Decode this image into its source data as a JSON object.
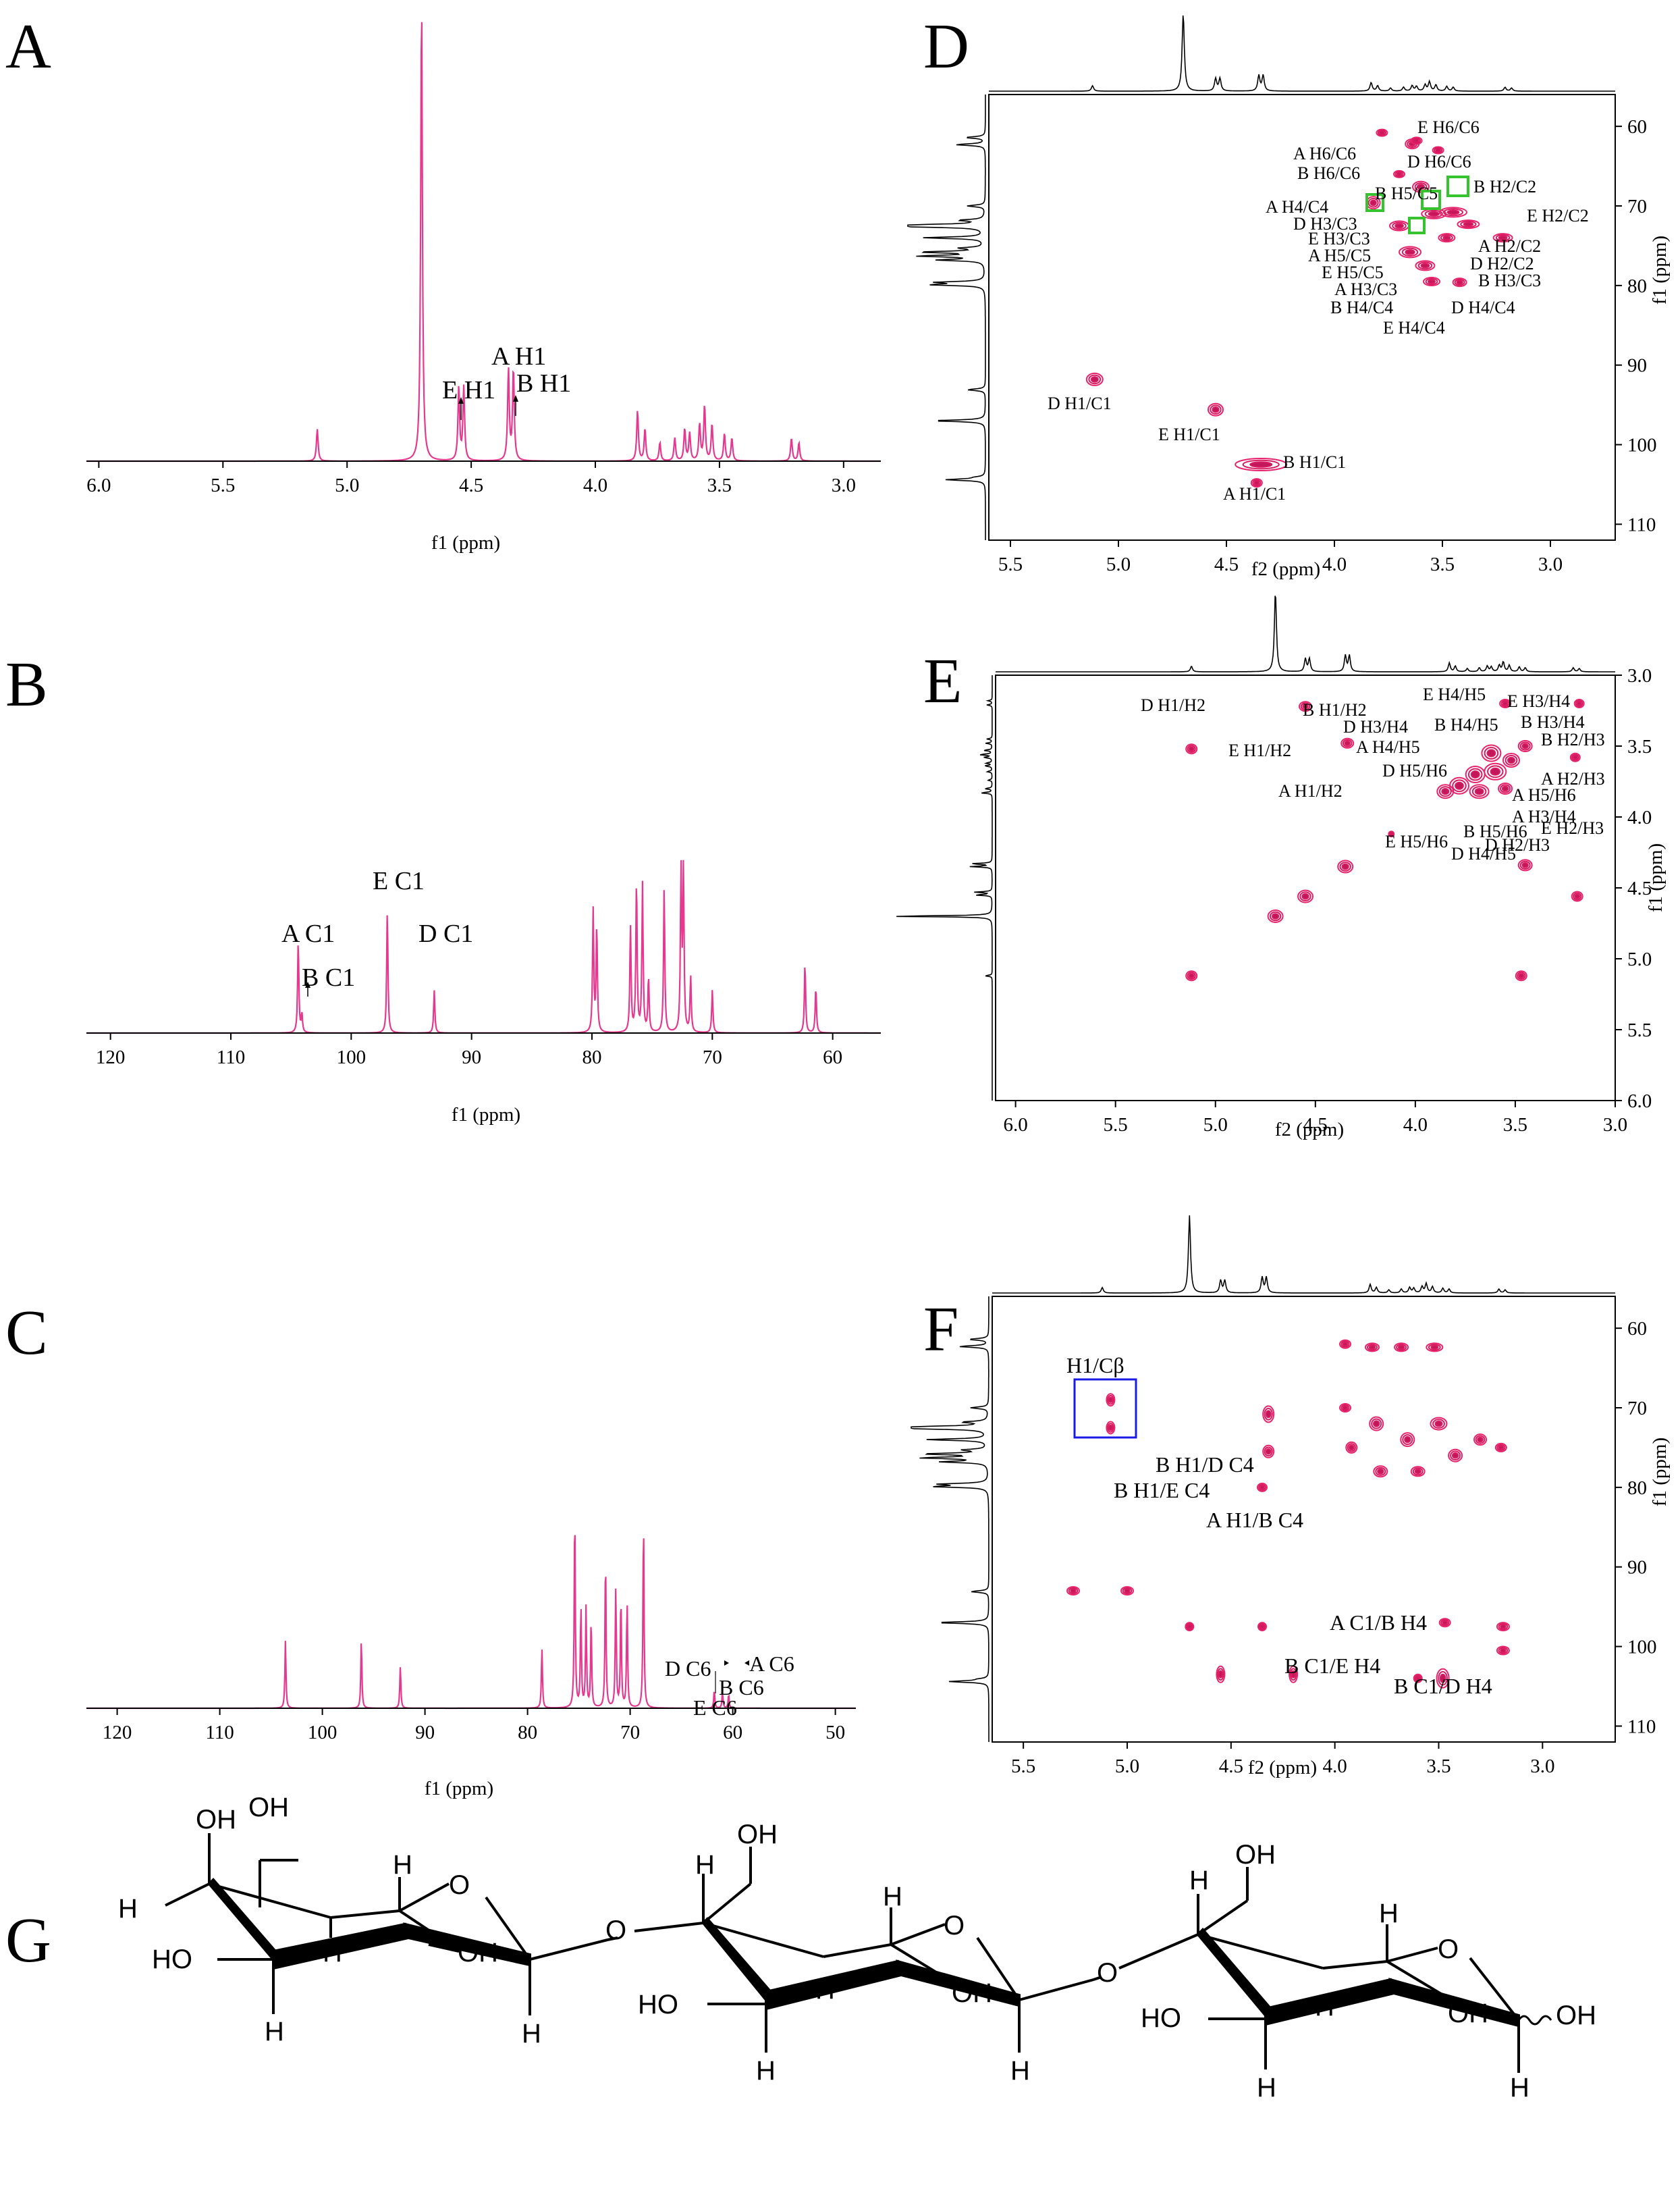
{
  "colors": {
    "spectrum": "#e5398f",
    "contour": "#e8236d",
    "contour_inner": "#c2185b",
    "frame": "#000000",
    "highlight_green": "#35c42e",
    "highlight_blue": "#1a1ae6"
  },
  "chart_data": [
    {
      "panel": "A",
      "type": "line",
      "title": "",
      "xlabel": "f1 (ppm)",
      "xlim": [
        6.05,
        2.85
      ],
      "xticks": [
        6.0,
        5.5,
        5.0,
        4.5,
        4.0,
        3.5,
        3.0
      ],
      "peaks": [
        {
          "x": 5.12,
          "h": 0.07
        },
        {
          "x": 4.7,
          "h": 1.0
        },
        {
          "x": 4.55,
          "h": 0.16
        },
        {
          "x": 4.53,
          "h": 0.16
        },
        {
          "x": 4.35,
          "h": 0.2
        },
        {
          "x": 4.33,
          "h": 0.2
        },
        {
          "x": 3.83,
          "h": 0.11
        },
        {
          "x": 3.8,
          "h": 0.07
        },
        {
          "x": 3.74,
          "h": 0.04
        },
        {
          "x": 3.68,
          "h": 0.05
        },
        {
          "x": 3.64,
          "h": 0.07
        },
        {
          "x": 3.62,
          "h": 0.06
        },
        {
          "x": 3.58,
          "h": 0.08
        },
        {
          "x": 3.56,
          "h": 0.12
        },
        {
          "x": 3.53,
          "h": 0.08
        },
        {
          "x": 3.48,
          "h": 0.06
        },
        {
          "x": 3.45,
          "h": 0.05
        },
        {
          "x": 3.21,
          "h": 0.05
        },
        {
          "x": 3.18,
          "h": 0.04
        }
      ],
      "annotations": [
        "E H1",
        "A H1",
        "B H1"
      ]
    },
    {
      "panel": "B",
      "type": "line",
      "title": "",
      "xlabel": "f1 (ppm)",
      "xlim": [
        122,
        56
      ],
      "xticks": [
        120,
        110,
        100,
        90,
        80,
        70,
        60
      ],
      "peaks": [
        {
          "x": 104.4,
          "h": 0.5
        },
        {
          "x": 104.1,
          "h": 0.1
        },
        {
          "x": 97.0,
          "h": 0.67
        },
        {
          "x": 93.1,
          "h": 0.23
        },
        {
          "x": 79.9,
          "h": 0.66
        },
        {
          "x": 79.6,
          "h": 0.58
        },
        {
          "x": 76.8,
          "h": 0.58
        },
        {
          "x": 76.3,
          "h": 0.83
        },
        {
          "x": 75.8,
          "h": 0.8
        },
        {
          "x": 75.3,
          "h": 0.3
        },
        {
          "x": 74.0,
          "h": 0.78
        },
        {
          "x": 72.6,
          "h": 0.86
        },
        {
          "x": 72.4,
          "h": 0.86
        },
        {
          "x": 71.8,
          "h": 0.3
        },
        {
          "x": 70.0,
          "h": 0.23
        },
        {
          "x": 62.3,
          "h": 0.38
        },
        {
          "x": 61.4,
          "h": 0.25
        }
      ],
      "annotations": [
        "E C1",
        "A C1",
        "B C1",
        "D C1"
      ]
    },
    {
      "panel": "C",
      "type": "line",
      "title": "",
      "xlabel": "f1 (ppm)",
      "xlim": [
        123,
        48
      ],
      "xticks": [
        120,
        110,
        100,
        90,
        80,
        70,
        60,
        50
      ],
      "peaks": [
        {
          "x": 103.6,
          "h": 0.34
        },
        {
          "x": 96.2,
          "h": 0.34
        },
        {
          "x": 92.4,
          "h": 0.21
        },
        {
          "x": 78.6,
          "h": 0.3
        },
        {
          "x": 75.4,
          "h": 1.0
        },
        {
          "x": 74.8,
          "h": 0.5
        },
        {
          "x": 74.3,
          "h": 0.5
        },
        {
          "x": 73.8,
          "h": 0.44
        },
        {
          "x": 72.4,
          "h": 0.76
        },
        {
          "x": 71.4,
          "h": 0.6
        },
        {
          "x": 70.9,
          "h": 0.56
        },
        {
          "x": 70.3,
          "h": 0.53
        },
        {
          "x": 68.7,
          "h": 0.95
        },
        {
          "x": 61.8,
          "h": 0.09
        },
        {
          "x": 61.0,
          "h": 0.08
        },
        {
          "x": 60.4,
          "h": 0.07
        }
      ],
      "annotations": [
        "D C6",
        "A C6",
        "B C6",
        "E C6"
      ]
    },
    {
      "panel": "D",
      "type": "heatmap",
      "xlabel": "f2 (ppm)",
      "ylabel": "f1 (ppm)",
      "xlim": [
        5.6,
        2.7
      ],
      "ylim": [
        56,
        112
      ],
      "xticks": [
        5.5,
        5.0,
        4.5,
        4.0,
        3.5,
        3.0
      ],
      "yticks": [
        60,
        70,
        80,
        90,
        100,
        110
      ],
      "annotations": [
        "E H6/C6",
        "A H6/C6",
        "D H6/C6",
        "B H6/C6",
        "B H5/C5",
        "B H2/C2",
        "A H4/C4",
        "D H3/C3",
        "E H2/C2",
        "E H3/C3",
        "A H2/C2",
        "A H5/C5",
        "D H2/C2",
        "E H5/C5",
        "B H3/C3",
        "A H3/C3",
        "B H4/C4",
        "D H4/C4",
        "E H4/C4",
        "D H1/C1",
        "E H1/C1",
        "B H1/C1",
        "A H1/C1"
      ]
    },
    {
      "panel": "E",
      "type": "heatmap",
      "xlabel": "f2 (ppm)",
      "ylabel": "f1 (ppm)",
      "xlim": [
        6.1,
        3.0
      ],
      "ylim": [
        3.0,
        6.0
      ],
      "xticks": [
        6.0,
        5.5,
        5.0,
        4.5,
        4.0,
        3.5,
        3.0
      ],
      "yticks": [
        3.0,
        3.5,
        4.0,
        4.5,
        5.0,
        5.5,
        6.0
      ],
      "annotations": [
        "D H1/H2",
        "B H1/H2",
        "E H1/H2",
        "D H3/H4",
        "A H4/H5",
        "D H5/H6",
        "A H1/H2",
        "E H4/H5",
        "E H3/H4",
        "B H4/H5",
        "B H3/H4",
        "B H2/H3",
        "A H2/H3",
        "A H5/H6",
        "A H3/H4",
        "E H2/H3",
        "E H5/H6",
        "B H5/H6",
        "D H2/H3",
        "D H4/H5"
      ]
    },
    {
      "panel": "F",
      "type": "heatmap",
      "xlabel": "f2 (ppm)",
      "ylabel": "f1 (ppm)",
      "xlim": [
        5.65,
        2.65
      ],
      "ylim": [
        56,
        112
      ],
      "xticks": [
        5.5,
        5.0,
        4.5,
        4.0,
        3.5,
        3.0
      ],
      "yticks": [
        60,
        70,
        80,
        90,
        100,
        110
      ],
      "annotations": [
        "H1/Cβ",
        "B H1/D C4",
        "B H1/E C4",
        "A H1/B C4",
        "A C1/B H4",
        "B C1/E H4",
        "B C1/D H4"
      ]
    }
  ],
  "panels": {
    "A": {
      "label": "A",
      "xlabel": "f1 (ppm)",
      "ticks": [
        "6.0",
        "5.5",
        "5.0",
        "4.5",
        "4.0",
        "3.5",
        "3.0"
      ],
      "ann": {
        "a": "A H1",
        "b": "E H1",
        "c": "B H1"
      }
    },
    "B": {
      "label": "B",
      "xlabel": "f1 (ppm)",
      "ticks": [
        "120",
        "110",
        "100",
        "90",
        "80",
        "70",
        "60"
      ],
      "ann": {
        "e": "E C1",
        "a": "A C1",
        "b": "B C1",
        "d": "D C1"
      }
    },
    "C": {
      "label": "C",
      "xlabel": "f1 (ppm)",
      "ticks": [
        "120",
        "110",
        "100",
        "90",
        "80",
        "70",
        "60",
        "50"
      ],
      "ann": {
        "d": "D C6",
        "a": "A C6",
        "b": "B C6",
        "e": "E C6"
      }
    },
    "D": {
      "label": "D",
      "xlabel": "f2 (ppm)",
      "ylabel": "f1 (ppm)",
      "xticks": [
        "5.5",
        "5.0",
        "4.5",
        "4.0",
        "3.5",
        "3.0"
      ],
      "yticks": [
        "60",
        "70",
        "80",
        "90",
        "100",
        "110"
      ],
      "ann": [
        "E H6/C6",
        "A H6/C6",
        "D H6/C6",
        "B H6/C6",
        "B H5/C5",
        "B H2/C2",
        "A H4/C4",
        "D H3/C3",
        "E H2/C2",
        "E H3/C3",
        "A H2/C2",
        "A H5/C5",
        "D H2/C2",
        "E H5/C5",
        "B H3/C3",
        "A H3/C3",
        "B H4/C4",
        "D H4/C4",
        "E H4/C4",
        "D H1/C1",
        "E H1/C1",
        "B H1/C1",
        "A H1/C1"
      ]
    },
    "E": {
      "label": "E",
      "xlabel": "f2 (ppm)",
      "ylabel": "f1 (ppm)",
      "xticks": [
        "6.0",
        "5.5",
        "5.0",
        "4.5",
        "4.0",
        "3.5",
        "3.0"
      ],
      "yticks": [
        "3.0",
        "3.5",
        "4.0",
        "4.5",
        "5.0",
        "5.5",
        "6.0"
      ],
      "ann": [
        "D H1/H2",
        "B H1/H2",
        "E H1/H2",
        "D H3/H4",
        "A H4/H5",
        "D H5/H6",
        "A H1/H2",
        "E H4/H5",
        "E H3/H4",
        "B H4/H5",
        "B H3/H4",
        "B H2/H3",
        "A H2/H3",
        "A H5/H6",
        "A H3/H4",
        "E H2/H3",
        "E H5/H6",
        "B H5/H6",
        "D H2/H3",
        "D H4/H5"
      ]
    },
    "F": {
      "label": "F",
      "xlabel": "f2 (ppm)",
      "ylabel": "f1 (ppm)",
      "xticks": [
        "5.5",
        "5.0",
        "4.5",
        "4.0",
        "3.5",
        "3.0"
      ],
      "yticks": [
        "60",
        "70",
        "80",
        "90",
        "100",
        "110"
      ],
      "ann": [
        "H1/Cβ",
        "B H1/D C4",
        "B H1/E C4",
        "A H1/B C4",
        "A C1/B H4",
        "B C1/E H4",
        "B C1/D H4"
      ]
    },
    "G": {
      "label": "G",
      "atoms": {
        "oh": "OH",
        "ho": "HO",
        "h": "H",
        "o": "O"
      }
    }
  }
}
